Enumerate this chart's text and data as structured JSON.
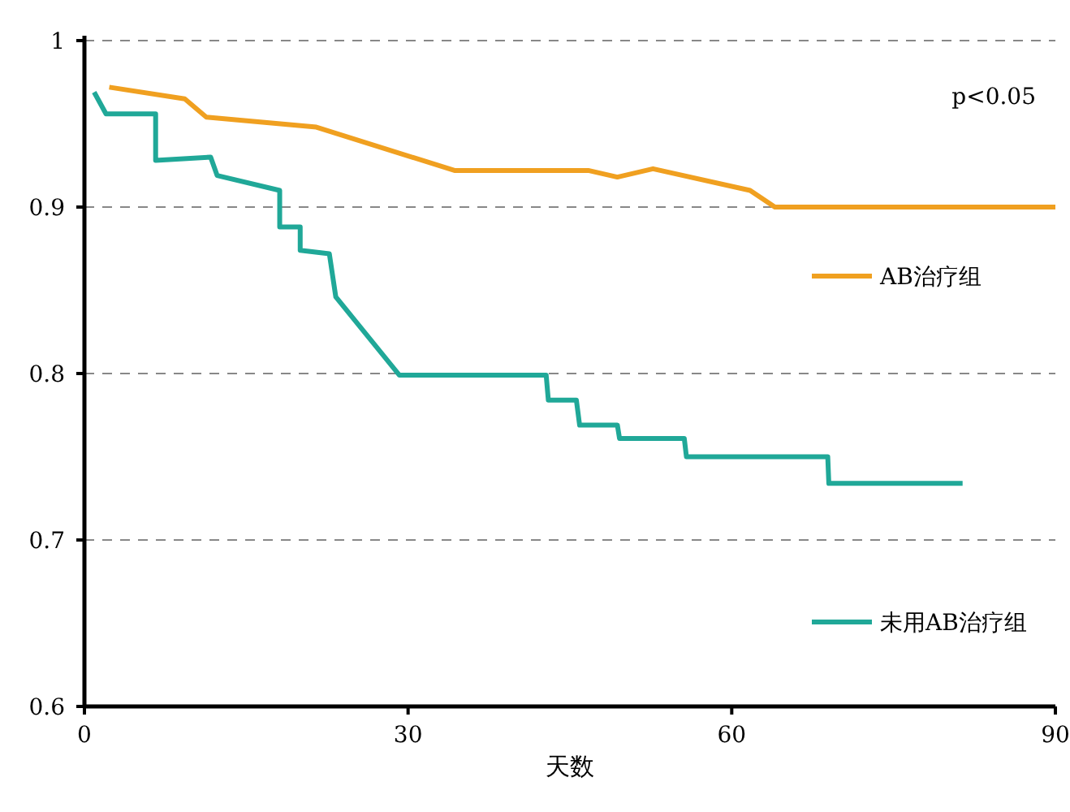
{
  "chart_data": {
    "type": "line",
    "xlabel": "天数",
    "annotations": [
      "p<0.05"
    ],
    "xlim": [
      0,
      90
    ],
    "ylim": [
      0.6,
      1
    ],
    "xticks": [
      0,
      30,
      60,
      90
    ],
    "yticks": [
      0.6,
      0.7,
      0.8,
      0.9,
      1
    ],
    "grid": "y",
    "legend": "right",
    "marker": "none",
    "line_style": "solid",
    "series": [
      {
        "name": "AB治疗组",
        "color": "#f0a020",
        "x": [
          2.3,
          9.3,
          11.3,
          21.5,
          34.3,
          46.7,
          49.4,
          52.7,
          61.7,
          64.0,
          90
        ],
        "values": [
          0.972,
          0.965,
          0.954,
          0.948,
          0.922,
          0.922,
          0.918,
          0.923,
          0.91,
          0.9,
          0.9
        ]
      },
      {
        "name": "未用AB治疗组",
        "color": "#20a898",
        "x": [
          0.9,
          2.0,
          6.6,
          6.6,
          11.7,
          12.3,
          18.1,
          18.1,
          20.0,
          20.0,
          22.7,
          23.3,
          29.2,
          42.8,
          43.0,
          45.6,
          45.9,
          49.4,
          49.6,
          55.6,
          55.8,
          68.9,
          69.0,
          81.4
        ],
        "values": [
          0.969,
          0.956,
          0.956,
          0.928,
          0.93,
          0.919,
          0.91,
          0.888,
          0.888,
          0.874,
          0.872,
          0.846,
          0.799,
          0.799,
          0.784,
          0.784,
          0.769,
          0.769,
          0.761,
          0.761,
          0.75,
          0.75,
          0.734,
          0.734
        ]
      }
    ]
  }
}
